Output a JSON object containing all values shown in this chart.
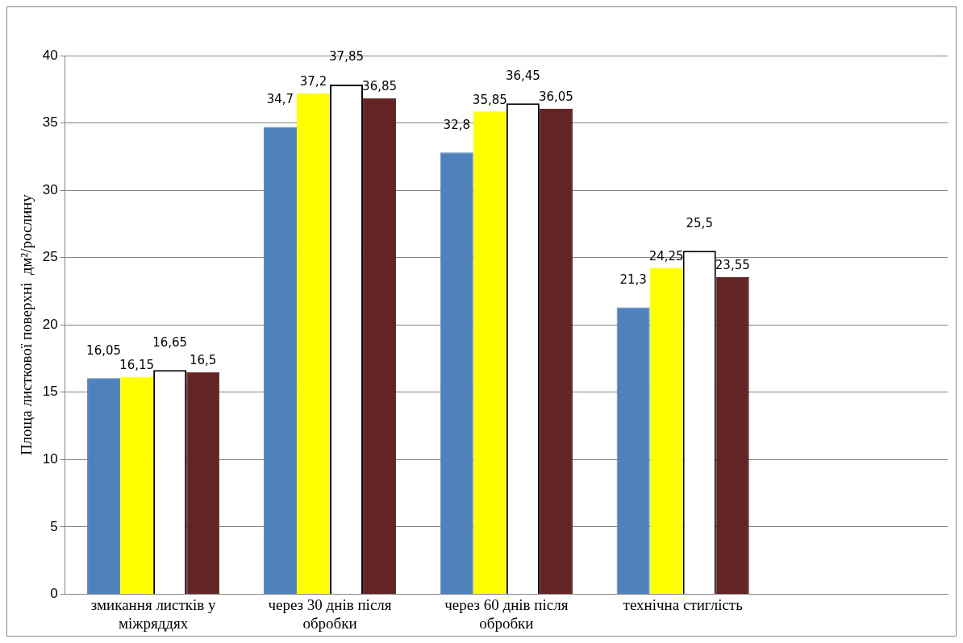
{
  "chart_data": {
    "type": "bar",
    "ylabel": "Площа листкової поверхні  дм²/рослину",
    "categories": [
      "змикання листків у міжряддях",
      "через 30 днів після обробки",
      "через 60 днів після обробки",
      "технічна стиглість",
      null
    ],
    "series": [
      {
        "color": "#4f81bd",
        "values": [
          16.05,
          34.7,
          32.8,
          21.3,
          null
        ],
        "value_labels": [
          "16,05",
          "34,7",
          "32,8",
          "21,3",
          null
        ]
      },
      {
        "color": "#ffff00",
        "values": [
          16.15,
          37.2,
          35.85,
          24.25,
          null
        ],
        "value_labels": [
          "16,15",
          "37,2",
          "35,85",
          "24,25",
          null
        ]
      },
      {
        "color": "#ffffff",
        "values": [
          16.65,
          37.85,
          36.45,
          25.5,
          null
        ],
        "value_labels": [
          "16,65",
          "37,85",
          "36,45",
          "25,5",
          null
        ]
      },
      {
        "color": "#632523",
        "values": [
          16.5,
          36.85,
          36.05,
          23.55,
          null
        ],
        "value_labels": [
          "16,5",
          "36,85",
          "36,05",
          "23,55",
          null
        ]
      }
    ],
    "ylim": [
      0,
      40
    ],
    "yticks": [
      0,
      5,
      10,
      15,
      20,
      25,
      30,
      35,
      40
    ],
    "grid": "y",
    "legend": false
  }
}
